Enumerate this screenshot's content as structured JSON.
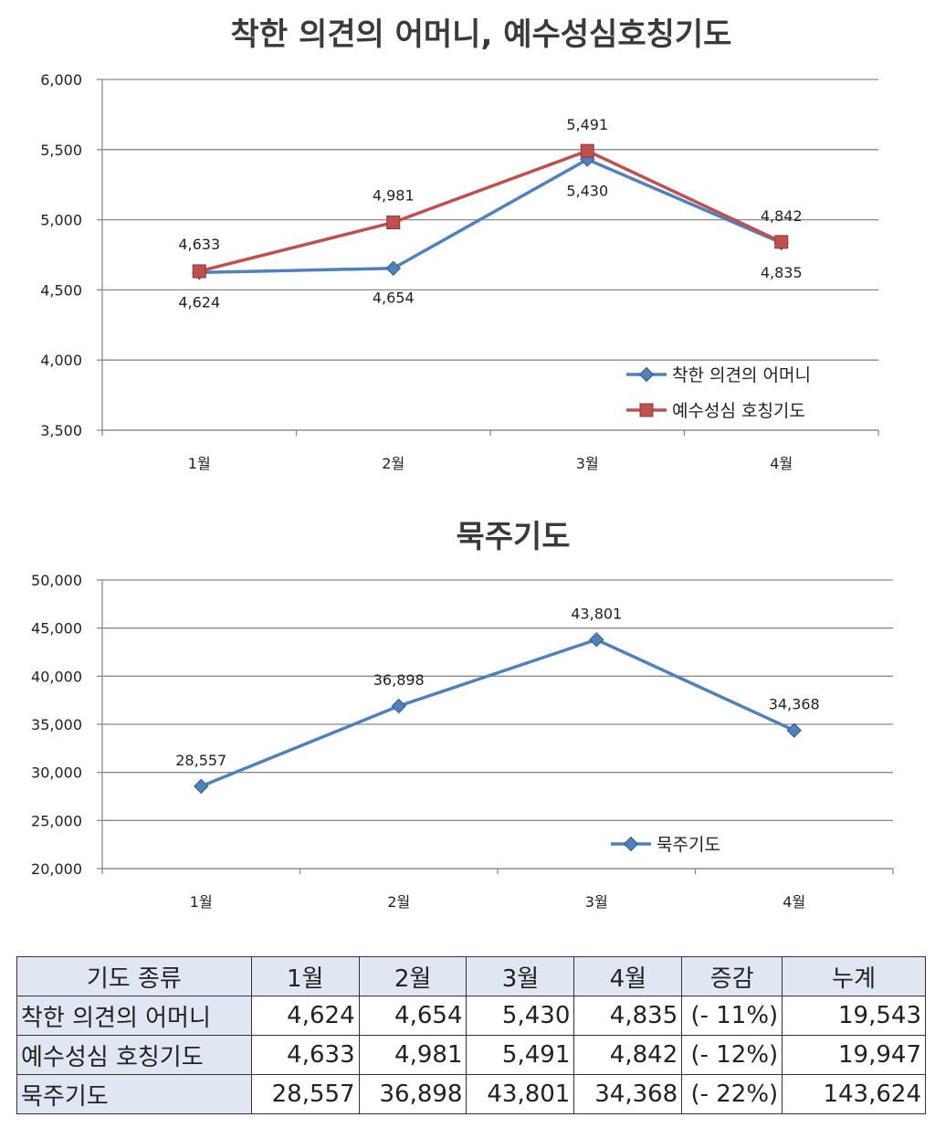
{
  "chart_data": [
    {
      "type": "line",
      "title": "착한 의견의 어머니, 예수성심호칭기도",
      "categories": [
        "1월",
        "2월",
        "3월",
        "4월"
      ],
      "series": [
        {
          "name": "착한 의견의 어머니",
          "values": [
            4624,
            4654,
            5430,
            4835
          ],
          "labels": [
            "4,624",
            "4,654",
            "5,430",
            "4,835"
          ],
          "color": "#4f81bd",
          "marker": "diamond"
        },
        {
          "name": "예수성심 호칭기도",
          "values": [
            4633,
            4981,
            5491,
            4842
          ],
          "labels": [
            "4,633",
            "4,981",
            "5,491",
            "4,842"
          ],
          "color": "#c0504d",
          "marker": "square"
        }
      ],
      "ylim": [
        3500,
        6000
      ],
      "yticks": [
        3500,
        4000,
        4500,
        5000,
        5500,
        6000
      ],
      "ytick_labels": [
        "3,500",
        "4,000",
        "4,500",
        "5,000",
        "5,500",
        "6,000"
      ],
      "grid": true,
      "legend": "bottom-right"
    },
    {
      "type": "line",
      "title": "묵주기도",
      "categories": [
        "1월",
        "2월",
        "3월",
        "4월"
      ],
      "series": [
        {
          "name": "묵주기도",
          "values": [
            28557,
            36898,
            43801,
            34368
          ],
          "labels": [
            "28,557",
            "36,898",
            "43,801",
            "34,368"
          ],
          "color": "#4f81bd",
          "marker": "diamond"
        }
      ],
      "ylim": [
        20000,
        50000
      ],
      "yticks": [
        20000,
        25000,
        30000,
        35000,
        40000,
        45000,
        50000
      ],
      "ytick_labels": [
        "20,000",
        "25,000",
        "30,000",
        "35,000",
        "40,000",
        "45,000",
        "50,000"
      ],
      "grid": true,
      "legend": "bottom-right"
    }
  ],
  "table": {
    "headers": [
      "기도 종류",
      "1월",
      "2월",
      "3월",
      "4월",
      "증감",
      "누계"
    ],
    "rows": [
      {
        "name": "착한 의견의 어머니",
        "cells": [
          "4,624",
          "4,654",
          "5,430",
          "4,835",
          "(- 11%)",
          "19,543"
        ]
      },
      {
        "name": "예수성심 호칭기도",
        "cells": [
          "4,633",
          "4,981",
          "5,491",
          "4,842",
          "(- 12%)",
          "19,947"
        ]
      },
      {
        "name": "묵주기도",
        "cells": [
          "28,557",
          "36,898",
          "43,801",
          "34,368",
          "(- 22%)",
          "143,624"
        ]
      }
    ]
  }
}
